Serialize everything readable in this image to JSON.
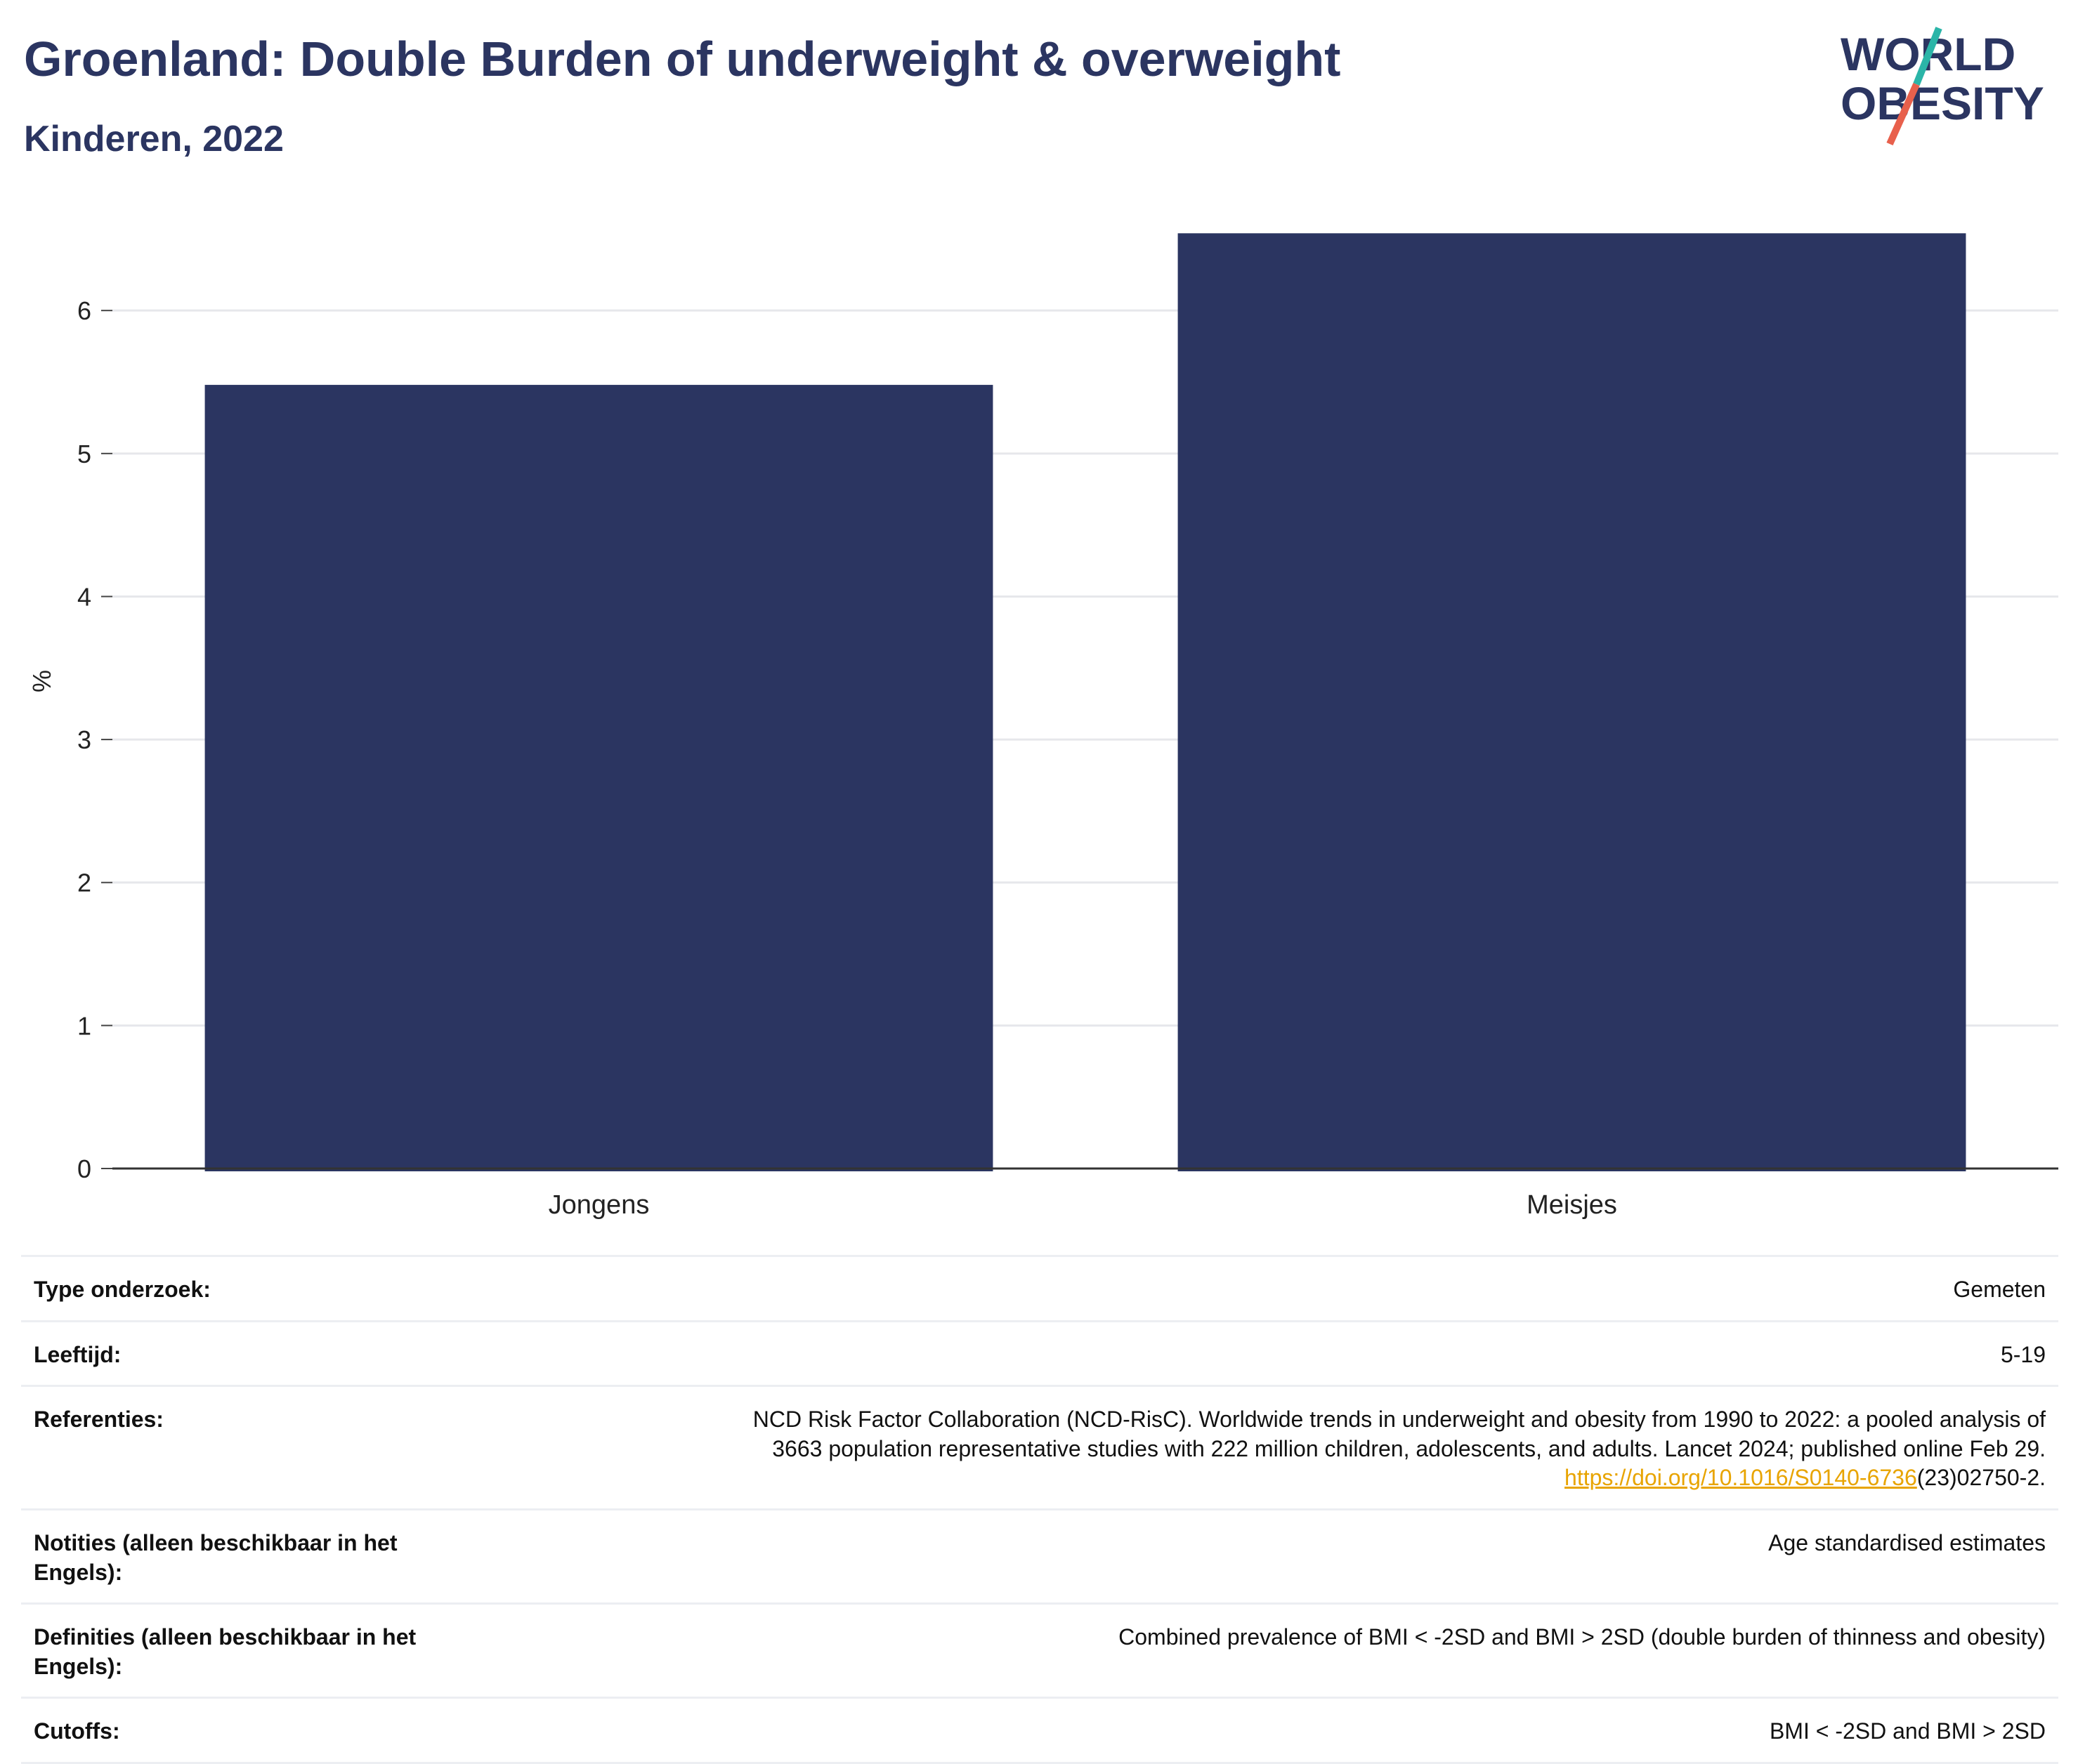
{
  "header": {
    "title": "Groenland: Double Burden of underweight & overweight",
    "subtitle": "Kinderen, 2022"
  },
  "logo": {
    "line1": "WORLD",
    "line2": "OBESITY",
    "slash_top_color": "#2bb5a8",
    "slash_bottom_color": "#e8604c"
  },
  "colors": {
    "bar": "#2b3561",
    "title": "#2b3561",
    "link": "#e8a400"
  },
  "chart_data": {
    "type": "bar",
    "categories": [
      "Jongens",
      "Meisjes"
    ],
    "values": [
      5.48,
      6.54
    ],
    "ylabel": "%",
    "xlabel": "",
    "ylim": [
      0,
      6.6
    ],
    "yticks": [
      0,
      1,
      2,
      3,
      4,
      5,
      6
    ],
    "grid": true
  },
  "info": [
    {
      "label": "Type onderzoek:",
      "value": "Gemeten"
    },
    {
      "label": "Leeftijd:",
      "value": "5-19"
    },
    {
      "label": "Referenties:",
      "value_line1": "NCD Risk Factor Collaboration (NCD-RisC). Worldwide trends in underweight and obesity from 1990 to 2022: a pooled analysis of",
      "value_line2": "3663 population representative studies with 222 million children, adolescents, and adults. Lancet 2024; published online Feb 29.",
      "link_text": "https://doi.org/10.1016/S0140-6736",
      "link_suffix": "(23)02750-2."
    },
    {
      "label": "Notities (alleen beschikbaar in het Engels):",
      "value": "Age standardised estimates"
    },
    {
      "label": "Definities (alleen beschikbaar in het Engels):",
      "value": "Combined prevalence of BMI < -2SD and BMI > 2SD (double burden of thinness and obesity)"
    },
    {
      "label": "Cutoffs:",
      "value": "BMI < -2SD and BMI > 2SD"
    }
  ]
}
